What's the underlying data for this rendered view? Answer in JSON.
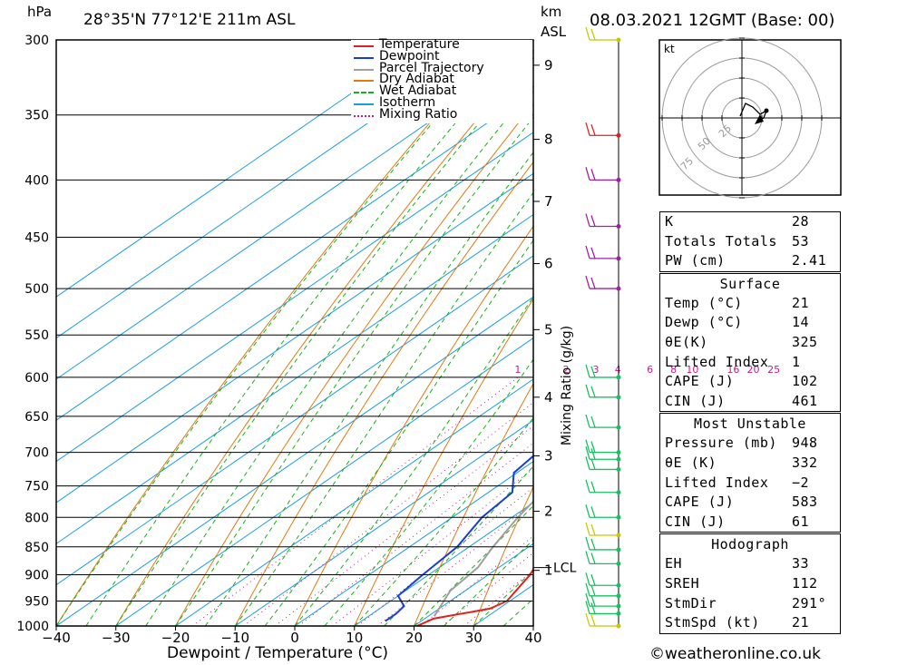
{
  "header": {
    "pressure_unit": "hPa",
    "location": "28°35'N 77°12'E 211m ASL",
    "height_unit_line1": "km",
    "height_unit_line2": "ASL",
    "datetime": "08.03.2021 12GMT (Base: 00)"
  },
  "footer": {
    "credit": "©weatheronline.co.uk"
  },
  "chart_data": {
    "type": "line",
    "title": "28°35'N 77°12'E 211m ASL",
    "xlabel": "Dewpoint / Temperature (°C)",
    "ylabel": "hPa",
    "right_axis_label": "km ASL",
    "mixing_ratio_axis_label": "Mixing Ratio (g/kg)",
    "x_ticks": [
      "−40",
      "−30",
      "−20",
      "−10",
      "0",
      "10",
      "20",
      "30",
      "40"
    ],
    "x_tick_values": [
      -40,
      -30,
      -20,
      -10,
      0,
      10,
      20,
      30,
      40
    ],
    "y_ticks": [
      300,
      350,
      400,
      450,
      500,
      550,
      600,
      650,
      700,
      750,
      800,
      850,
      900,
      950,
      1000
    ],
    "xlim": [
      -40,
      40
    ],
    "ylim": [
      1000,
      300
    ],
    "km_ticks": [
      {
        "label": "9",
        "p": 316
      },
      {
        "label": "8",
        "p": 368
      },
      {
        "label": "7",
        "p": 418
      },
      {
        "label": "6",
        "p": 475
      },
      {
        "label": "5",
        "p": 544
      },
      {
        "label": "4",
        "p": 625
      },
      {
        "label": "3",
        "p": 705
      },
      {
        "label": "2",
        "p": 790
      },
      {
        "label": "1",
        "p": 892
      }
    ],
    "lcl": {
      "label": "LCL",
      "p": 887
    },
    "mixing_ratio_labels": [
      "1",
      "2",
      "3",
      "4",
      "6",
      "8",
      "10",
      "16",
      "20",
      "25"
    ],
    "mixing_ratio_values": [
      1,
      2,
      3,
      4,
      6,
      8,
      10,
      16,
      20,
      25
    ],
    "legend": {
      "placement": "top-right",
      "items": [
        {
          "name": "Temperature",
          "color": "#e02020",
          "style": "solid"
        },
        {
          "name": "Dewpoint",
          "color": "#1a3fd0",
          "style": "solid"
        },
        {
          "name": "Parcel Trajectory",
          "color": "#a0a0a0",
          "style": "solid"
        },
        {
          "name": "Dry Adiabat",
          "color": "#e07a10",
          "style": "solid"
        },
        {
          "name": "Wet Adiabat",
          "color": "#18b018",
          "style": "dashed"
        },
        {
          "name": "Isotherm",
          "color": "#1a9ee0",
          "style": "solid"
        },
        {
          "name": "Mixing Ratio",
          "color": "#c0208a",
          "style": "dotted"
        }
      ]
    },
    "series": [
      {
        "name": "Temperature",
        "color": "#e02020",
        "points": [
          [
            1000,
            20.5
          ],
          [
            985,
            21.5
          ],
          [
            965,
            28.5
          ],
          [
            950,
            29.5
          ],
          [
            900,
            27.0
          ],
          [
            850,
            23.0
          ],
          [
            800,
            19.5
          ],
          [
            760,
            16.0
          ],
          [
            730,
            14.5
          ],
          [
            700,
            11.0
          ],
          [
            650,
            6.0
          ],
          [
            600,
            1.5
          ],
          [
            575,
            -1.0
          ],
          [
            550,
            -3.5
          ],
          [
            525,
            -5.0
          ],
          [
            510,
            -4.0
          ],
          [
            500,
            -4.5
          ],
          [
            480,
            -6.5
          ],
          [
            450,
            -8.5
          ],
          [
            400,
            -13.0
          ],
          [
            350,
            -19.5
          ],
          [
            330,
            -20.0
          ],
          [
            300,
            -21.5
          ]
        ]
      },
      {
        "name": "Dewpoint",
        "color": "#1a3fd0",
        "points": [
          [
            990,
            14.0
          ],
          [
            975,
            14.0
          ],
          [
            960,
            13.5
          ],
          [
            940,
            10.0
          ],
          [
            900,
            9.0
          ],
          [
            850,
            8.0
          ],
          [
            800,
            5.0
          ],
          [
            760,
            4.0
          ],
          [
            730,
            -0.5
          ],
          [
            700,
            -1.5
          ],
          [
            650,
            -5.0
          ],
          [
            600,
            -6.0
          ],
          [
            560,
            -6.5
          ],
          [
            530,
            -9.0
          ],
          [
            510,
            -15.0
          ],
          [
            500,
            -22.0
          ],
          [
            475,
            -25.0
          ],
          [
            440,
            -33.0
          ],
          [
            420,
            -40.0
          ],
          [
            400,
            -40.0
          ],
          [
            350,
            -33.0
          ],
          [
            330,
            -36.5
          ],
          [
            300,
            -39.0
          ]
        ]
      },
      {
        "name": "Parcel Trajectory",
        "color": "#a0a0a0",
        "points": [
          [
            980,
            21.0
          ],
          [
            930,
            17.5
          ],
          [
            887,
            16.5
          ],
          [
            850,
            14.0
          ],
          [
            800,
            11.0
          ],
          [
            750,
            8.5
          ],
          [
            700,
            5.0
          ],
          [
            650,
            2.0
          ],
          [
            600,
            -1.0
          ],
          [
            550,
            -4.0
          ],
          [
            500,
            -7.5
          ],
          [
            450,
            -11.5
          ],
          [
            400,
            -16.0
          ],
          [
            350,
            -22.5
          ],
          [
            300,
            -30.0
          ]
        ]
      }
    ],
    "wind_barbs": [
      {
        "p": 1000,
        "style": "pennant-flag",
        "color": "#c8c800"
      },
      {
        "p": 975,
        "color": "#18c060"
      },
      {
        "p": 960,
        "color": "#18c060"
      },
      {
        "p": 940,
        "color": "#18c060"
      },
      {
        "p": 920,
        "color": "#18c060"
      },
      {
        "p": 880,
        "color": "#18c060"
      },
      {
        "p": 855,
        "color": "#18c060"
      },
      {
        "p": 830,
        "color": "#c8c800"
      },
      {
        "p": 800,
        "color": "#18c060"
      },
      {
        "p": 760,
        "color": "#18c060"
      },
      {
        "p": 725,
        "color": "#18c060"
      },
      {
        "p": 710,
        "color": "#18c060"
      },
      {
        "p": 700,
        "color": "#18c060"
      },
      {
        "p": 665,
        "color": "#18c060"
      },
      {
        "p": 625,
        "color": "#18c060"
      },
      {
        "p": 600,
        "color": "#18c060"
      },
      {
        "p": 500,
        "color": "#a020a0"
      },
      {
        "p": 470,
        "color": "#a020a0"
      },
      {
        "p": 440,
        "color": "#a020a0"
      },
      {
        "p": 400,
        "color": "#a020a0"
      },
      {
        "p": 365,
        "color": "#e02020"
      },
      {
        "p": 300,
        "color": "#c8c800"
      }
    ]
  },
  "hodograph": {
    "unit": "kt",
    "ring_labels": [
      "25",
      "50",
      "75"
    ]
  },
  "indices": {
    "top": [
      {
        "key": "K",
        "value": "28"
      },
      {
        "key": "Totals Totals",
        "value": "53"
      },
      {
        "key": "PW (cm)",
        "value": "2.41"
      }
    ],
    "surface": {
      "title": "Surface",
      "rows": [
        {
          "key": "Temp (°C)",
          "value": "21"
        },
        {
          "key": "Dewp (°C)",
          "value": "14"
        },
        {
          "key": "θE(K)",
          "value": "325"
        },
        {
          "key": "Lifted Index",
          "value": "1"
        },
        {
          "key": "CAPE (J)",
          "value": "102"
        },
        {
          "key": "CIN (J)",
          "value": "461"
        }
      ]
    },
    "most_unstable": {
      "title": "Most Unstable",
      "rows": [
        {
          "key": "Pressure (mb)",
          "value": "948"
        },
        {
          "key": "θE (K)",
          "value": "332"
        },
        {
          "key": "Lifted Index",
          "value": "−2"
        },
        {
          "key": "CAPE (J)",
          "value": "583"
        },
        {
          "key": "CIN (J)",
          "value": "61"
        }
      ]
    },
    "hodograph": {
      "title": "Hodograph",
      "rows": [
        {
          "key": "EH",
          "value": "33"
        },
        {
          "key": "SREH",
          "value": "112"
        },
        {
          "key": "StmDir",
          "value": "291°"
        },
        {
          "key": "StmSpd (kt)",
          "value": "21"
        }
      ]
    }
  }
}
